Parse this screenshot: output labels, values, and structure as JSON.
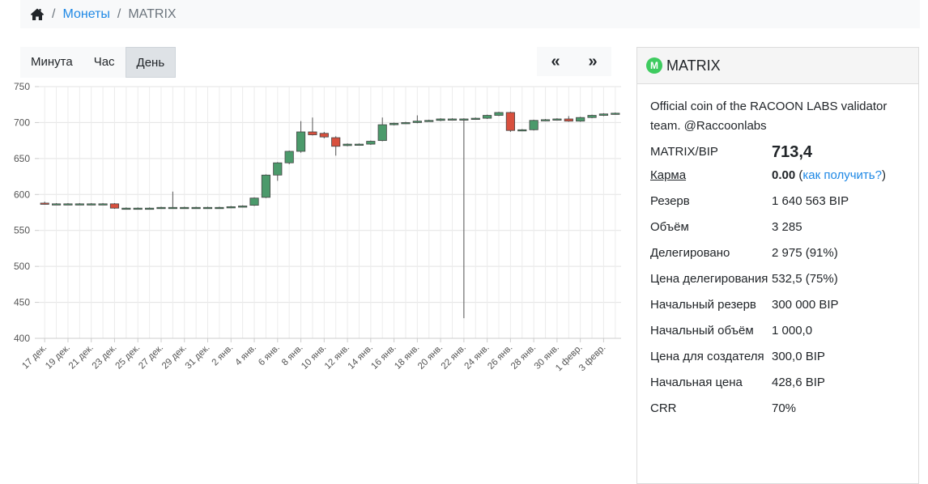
{
  "breadcrumb": {
    "coins": "Монеты",
    "current": "MATRIX",
    "separator": "/"
  },
  "timeframes": [
    {
      "label": "Минута",
      "active": false
    },
    {
      "label": "Час",
      "active": false
    },
    {
      "label": "День",
      "active": true
    }
  ],
  "nav": {
    "prev": "«",
    "next": "»"
  },
  "colors": {
    "up": "#4b9a6b",
    "down": "#d8503e",
    "accent": "#1e88e5",
    "logo": "#3ecb5f"
  },
  "chart_data": {
    "type": "candlestick",
    "ylim": [
      400,
      750
    ],
    "yticks": [
      400,
      450,
      500,
      550,
      600,
      650,
      700,
      750
    ],
    "grid": true,
    "xtick_labels": [
      "17 дек.",
      "19 дек.",
      "21 дек.",
      "23 дек.",
      "25 дек.",
      "27 дек.",
      "29 дек.",
      "31 дек.",
      "2 янв.",
      "4 янв.",
      "6 янв.",
      "8 янв.",
      "10 янв.",
      "12 янв.",
      "14 янв.",
      "16 янв.",
      "18 янв.",
      "20 янв.",
      "22 янв.",
      "24 янв.",
      "26 янв.",
      "28 янв.",
      "30 янв.",
      "1 февр.",
      "3 февр."
    ],
    "candles": [
      {
        "date": "17 дек.",
        "o": 588,
        "h": 590,
        "l": 586,
        "c": 587
      },
      {
        "date": "18 дек.",
        "o": 587,
        "h": 588,
        "l": 587,
        "c": 587
      },
      {
        "date": "19 дек.",
        "o": 587,
        "h": 588,
        "l": 587,
        "c": 587
      },
      {
        "date": "20 дек.",
        "o": 587,
        "h": 588,
        "l": 587,
        "c": 587
      },
      {
        "date": "21 дек.",
        "o": 587,
        "h": 588,
        "l": 586,
        "c": 587
      },
      {
        "date": "22 дек.",
        "o": 587,
        "h": 588,
        "l": 586,
        "c": 587
      },
      {
        "date": "23 дек.",
        "o": 587,
        "h": 588,
        "l": 580,
        "c": 581
      },
      {
        "date": "24 дек.",
        "o": 581,
        "h": 582,
        "l": 580,
        "c": 581
      },
      {
        "date": "25 дек.",
        "o": 581,
        "h": 582,
        "l": 580,
        "c": 581
      },
      {
        "date": "26 дек.",
        "o": 581,
        "h": 582,
        "l": 580,
        "c": 581
      },
      {
        "date": "27 дек.",
        "o": 581,
        "h": 583,
        "l": 580,
        "c": 582
      },
      {
        "date": "28 дек.",
        "o": 582,
        "h": 604,
        "l": 581,
        "c": 582
      },
      {
        "date": "29 дек.",
        "o": 582,
        "h": 583,
        "l": 581,
        "c": 582
      },
      {
        "date": "30 дек.",
        "o": 582,
        "h": 583,
        "l": 581,
        "c": 582
      },
      {
        "date": "31 дек.",
        "o": 582,
        "h": 583,
        "l": 581,
        "c": 582
      },
      {
        "date": "1 янв.",
        "o": 582,
        "h": 583,
        "l": 581,
        "c": 582
      },
      {
        "date": "2 янв.",
        "o": 582,
        "h": 584,
        "l": 581,
        "c": 583
      },
      {
        "date": "3 янв.",
        "o": 583,
        "h": 585,
        "l": 582,
        "c": 584
      },
      {
        "date": "4 янв.",
        "o": 585,
        "h": 596,
        "l": 584,
        "c": 595
      },
      {
        "date": "5 янв.",
        "o": 596,
        "h": 628,
        "l": 595,
        "c": 627
      },
      {
        "date": "6 янв.",
        "o": 627,
        "h": 645,
        "l": 619,
        "c": 644
      },
      {
        "date": "7 янв.",
        "o": 644,
        "h": 661,
        "l": 642,
        "c": 660
      },
      {
        "date": "8 янв.",
        "o": 660,
        "h": 702,
        "l": 658,
        "c": 687
      },
      {
        "date": "9 янв.",
        "o": 687,
        "h": 707,
        "l": 682,
        "c": 683
      },
      {
        "date": "10 янв.",
        "o": 685,
        "h": 687,
        "l": 678,
        "c": 680
      },
      {
        "date": "11 янв.",
        "o": 679,
        "h": 681,
        "l": 654,
        "c": 667
      },
      {
        "date": "12 янв.",
        "o": 668,
        "h": 671,
        "l": 667,
        "c": 670
      },
      {
        "date": "13 янв.",
        "o": 670,
        "h": 671,
        "l": 669,
        "c": 670
      },
      {
        "date": "14 янв.",
        "o": 670,
        "h": 675,
        "l": 669,
        "c": 674
      },
      {
        "date": "15 янв.",
        "o": 675,
        "h": 707,
        "l": 674,
        "c": 697
      },
      {
        "date": "16 янв.",
        "o": 697,
        "h": 700,
        "l": 696,
        "c": 699
      },
      {
        "date": "17 янв.",
        "o": 699,
        "h": 701,
        "l": 698,
        "c": 700
      },
      {
        "date": "18 янв.",
        "o": 700,
        "h": 710,
        "l": 699,
        "c": 702
      },
      {
        "date": "19 янв.",
        "o": 702,
        "h": 704,
        "l": 701,
        "c": 703
      },
      {
        "date": "20 янв.",
        "o": 703,
        "h": 706,
        "l": 702,
        "c": 705
      },
      {
        "date": "21 янв.",
        "o": 705,
        "h": 706,
        "l": 704,
        "c": 705
      },
      {
        "date": "22 янв.",
        "o": 705,
        "h": 706,
        "l": 428,
        "c": 705
      },
      {
        "date": "23 янв.",
        "o": 705,
        "h": 707,
        "l": 704,
        "c": 706
      },
      {
        "date": "24 янв.",
        "o": 706,
        "h": 711,
        "l": 705,
        "c": 710
      },
      {
        "date": "25 янв.",
        "o": 710,
        "h": 715,
        "l": 709,
        "c": 714
      },
      {
        "date": "26 янв.",
        "o": 714,
        "h": 715,
        "l": 687,
        "c": 689
      },
      {
        "date": "27 янв.",
        "o": 689,
        "h": 691,
        "l": 688,
        "c": 690
      },
      {
        "date": "28 янв.",
        "o": 690,
        "h": 704,
        "l": 689,
        "c": 703
      },
      {
        "date": "29 янв.",
        "o": 703,
        "h": 705,
        "l": 702,
        "c": 704
      },
      {
        "date": "30 янв.",
        "o": 704,
        "h": 706,
        "l": 703,
        "c": 705
      },
      {
        "date": "31 янв.",
        "o": 705,
        "h": 709,
        "l": 701,
        "c": 702
      },
      {
        "date": "1 февр.",
        "o": 702,
        "h": 708,
        "l": 701,
        "c": 707
      },
      {
        "date": "2 февр.",
        "o": 707,
        "h": 711,
        "l": 706,
        "c": 710
      },
      {
        "date": "3 февр.",
        "o": 710,
        "h": 713,
        "l": 709,
        "c": 712
      },
      {
        "date": "4 февр.",
        "o": 712,
        "h": 714,
        "l": 711,
        "c": 713
      }
    ]
  },
  "coin": {
    "logo_letter": "M",
    "name": "MATRIX",
    "description": "Official coin of the RACOON LABS validator team. @Raccoonlabs",
    "price_label": "MATRIX/BIP",
    "price_value": "713,4",
    "karma_label": "Карма",
    "karma_value": "0.00",
    "karma_open": "(",
    "karma_link": "как получить?",
    "karma_close": ")",
    "rows": [
      {
        "label": "Резерв",
        "value": "1 640 563 BIP"
      },
      {
        "label": "Объём",
        "value": "3 285"
      },
      {
        "label": "Делегировано",
        "value": "2 975 (91%)"
      },
      {
        "label": "Цена делегирования",
        "value": "532,5 (75%)"
      },
      {
        "label": "Начальный резерв",
        "value": "300 000 BIP"
      },
      {
        "label": "Начальный объём",
        "value": "1 000,0"
      },
      {
        "label": "Цена для создателя",
        "value": "300,0 BIP"
      },
      {
        "label": "Начальная цена",
        "value": "428,6 BIP"
      },
      {
        "label": "CRR",
        "value": "70%"
      }
    ]
  }
}
